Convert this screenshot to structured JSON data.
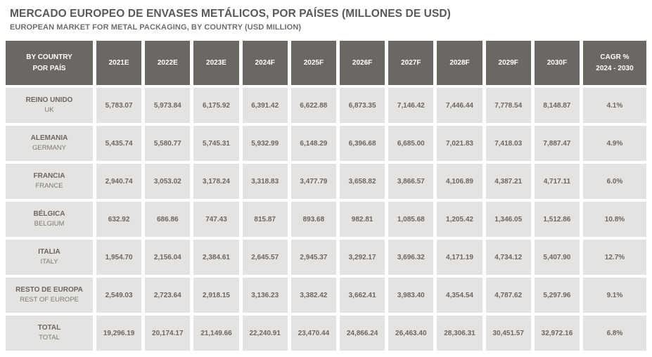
{
  "page": {
    "title": "MERCADO EUROPEO DE ENVASES METÁLICOS, POR PAÍSES (MILLONES DE USD)",
    "subtitle": "EUROPEAN MARKET FOR METAL PACKAGING, BY COUNTRY (USD MILLION)"
  },
  "colors": {
    "header_bg": "#6b6762",
    "header_text": "#ffffff",
    "cell_bg": "#e4e3e1",
    "cell_text": "#6b6762",
    "title_text": "#58595b",
    "subtitle_text": "#6d6e70"
  },
  "table": {
    "header": {
      "country_line1": "BY COUNTRY",
      "country_line2": "POR PAÍS",
      "years": [
        "2021E",
        "2022E",
        "2023E",
        "2024F",
        "2025F",
        "2026F",
        "2027F",
        "2028F",
        "2029F",
        "2030F"
      ],
      "cagr_line1": "CAGR %",
      "cagr_line2": "2024 - 2030"
    },
    "rows": [
      {
        "name_es": "REINO UNIDO",
        "name_en": "UK",
        "values": [
          "5,783.07",
          "5,973.84",
          "6,175.92",
          "6,391.42",
          "6,622.88",
          "6,873.35",
          "7,146.42",
          "7,446.44",
          "7,778.54",
          "8,148.87"
        ],
        "cagr": "4.1%"
      },
      {
        "name_es": "ALEMANIA",
        "name_en": "GERMANY",
        "values": [
          "5,435.74",
          "5,580.77",
          "5,745.31",
          "5,932.99",
          "6,148.29",
          "6,396.68",
          "6,685.00",
          "7,021.83",
          "7,418.03",
          "7,887.47"
        ],
        "cagr": "4.9%"
      },
      {
        "name_es": "FRANCIA",
        "name_en": "FRANCE",
        "values": [
          "2,940.74",
          "3,053.02",
          "3,178.24",
          "3,318.83",
          "3,477.79",
          "3,658.82",
          "3,866.57",
          "4,106.89",
          "4,387.21",
          "4,717.11"
        ],
        "cagr": "6.0%"
      },
      {
        "name_es": "BÉLGICA",
        "name_en": "BELGIUM",
        "values": [
          "632.92",
          "686.86",
          "747.43",
          "815.87",
          "893.68",
          "982.81",
          "1,085.68",
          "1,205.42",
          "1,346.05",
          "1,512.86"
        ],
        "cagr": "10.8%"
      },
      {
        "name_es": "ITALIA",
        "name_en": "ITALY",
        "values": [
          "1,954.70",
          "2,156.04",
          "2,384.61",
          "2,645.57",
          "2,945.37",
          "3,292.17",
          "3,696.32",
          "4,171.19",
          "4,734.12",
          "5,407.90"
        ],
        "cagr": "12.7%"
      },
      {
        "name_es": "RESTO DE EUROPA",
        "name_en": "REST OF EUROPE",
        "values": [
          "2,549.03",
          "2,723.64",
          "2,918.15",
          "3,136.23",
          "3,382.42",
          "3,662.41",
          "3,983.40",
          "4,354.54",
          "4,787.62",
          "5,297.96"
        ],
        "cagr": "9.1%"
      },
      {
        "name_es": "TOTAL",
        "name_en": "TOTAL",
        "values": [
          "19,296.19",
          "20,174.17",
          "21,149.66",
          "22,240.91",
          "23,470.44",
          "24,866.24",
          "26,463.40",
          "28,306.31",
          "30,451.57",
          "32,972.16"
        ],
        "cagr": "6.8%"
      }
    ]
  },
  "chart_data": {
    "type": "table",
    "title": "MERCADO EUROPEO DE ENVASES METÁLICOS, POR PAÍSES (MILLONES DE USD)",
    "subtitle": "EUROPEAN MARKET FOR METAL PACKAGING, BY COUNTRY (USD MILLION)",
    "unit": "USD million",
    "categories": [
      "2021E",
      "2022E",
      "2023E",
      "2024F",
      "2025F",
      "2026F",
      "2027F",
      "2028F",
      "2029F",
      "2030F"
    ],
    "cagr_column_label": "CAGR % 2024 - 2030",
    "series": [
      {
        "name": "REINO UNIDO / UK",
        "values": [
          5783.07,
          5973.84,
          6175.92,
          6391.42,
          6622.88,
          6873.35,
          7146.42,
          7446.44,
          7778.54,
          8148.87
        ],
        "cagr_pct": 4.1
      },
      {
        "name": "ALEMANIA / GERMANY",
        "values": [
          5435.74,
          5580.77,
          5745.31,
          5932.99,
          6148.29,
          6396.68,
          6685.0,
          7021.83,
          7418.03,
          7887.47
        ],
        "cagr_pct": 4.9
      },
      {
        "name": "FRANCIA / FRANCE",
        "values": [
          2940.74,
          3053.02,
          3178.24,
          3318.83,
          3477.79,
          3658.82,
          3866.57,
          4106.89,
          4387.21,
          4717.11
        ],
        "cagr_pct": 6.0
      },
      {
        "name": "BÉLGICA / BELGIUM",
        "values": [
          632.92,
          686.86,
          747.43,
          815.87,
          893.68,
          982.81,
          1085.68,
          1205.42,
          1346.05,
          1512.86
        ],
        "cagr_pct": 10.8
      },
      {
        "name": "ITALIA / ITALY",
        "values": [
          1954.7,
          2156.04,
          2384.61,
          2645.57,
          2945.37,
          3292.17,
          3696.32,
          4171.19,
          4734.12,
          5407.9
        ],
        "cagr_pct": 12.7
      },
      {
        "name": "RESTO DE EUROPA / REST OF EUROPE",
        "values": [
          2549.03,
          2723.64,
          2918.15,
          3136.23,
          3382.42,
          3662.41,
          3983.4,
          4354.54,
          4787.62,
          5297.96
        ],
        "cagr_pct": 9.1
      },
      {
        "name": "TOTAL",
        "values": [
          19296.19,
          20174.17,
          21149.66,
          22240.91,
          23470.44,
          24866.24,
          26463.4,
          28306.31,
          30451.57,
          32972.16
        ],
        "cagr_pct": 6.8
      }
    ]
  }
}
